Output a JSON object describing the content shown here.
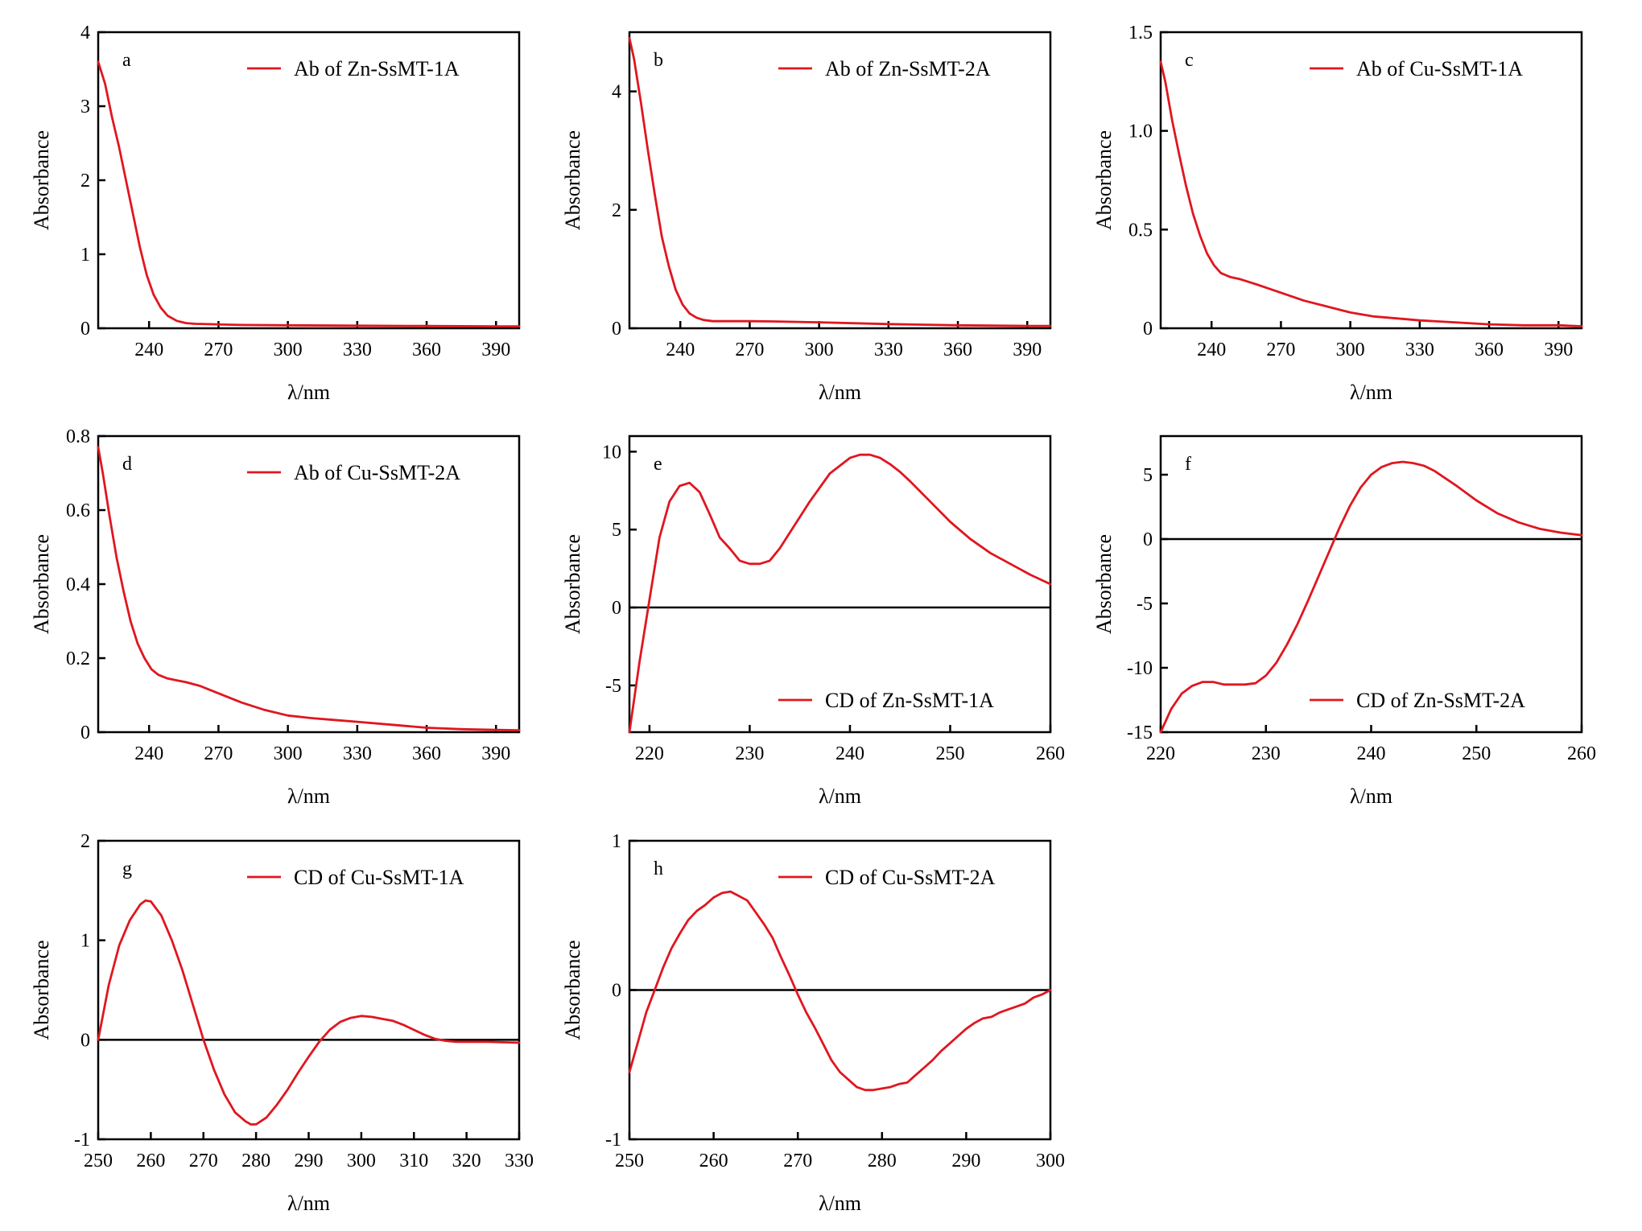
{
  "chart_data": [
    {
      "type": "line",
      "panel_label": "a",
      "xlabel": "λ/nm",
      "ylabel": "Absorbance",
      "xlim": [
        218,
        400
      ],
      "ylim": [
        0,
        4
      ],
      "xticks": [
        240,
        270,
        300,
        330,
        360,
        390
      ],
      "yticks": [
        0,
        1,
        2,
        3,
        4
      ],
      "zero_line": false,
      "legend_position": "top-right",
      "series": [
        {
          "name": "Ab of Zn-SsMT-1A",
          "color": "#e0161f",
          "x": [
            218,
            221,
            224,
            227,
            230,
            233,
            236,
            239,
            242,
            245,
            248,
            252,
            256,
            260,
            266,
            272,
            280,
            300,
            330,
            360,
            390,
            400
          ],
          "y": [
            3.6,
            3.3,
            2.85,
            2.45,
            2.0,
            1.55,
            1.1,
            0.72,
            0.45,
            0.28,
            0.17,
            0.1,
            0.07,
            0.06,
            0.055,
            0.05,
            0.045,
            0.04,
            0.035,
            0.03,
            0.025,
            0.025
          ]
        }
      ]
    },
    {
      "type": "line",
      "panel_label": "b",
      "xlabel": "λ/nm",
      "ylabel": "Absorbance",
      "xlim": [
        218,
        400
      ],
      "ylim": [
        0,
        5
      ],
      "xticks": [
        240,
        270,
        300,
        330,
        360,
        390
      ],
      "yticks": [
        0,
        2,
        4
      ],
      "zero_line": false,
      "legend_position": "top-right",
      "series": [
        {
          "name": "Ab of Zn-SsMT-2A",
          "color": "#e0161f",
          "x": [
            218,
            220,
            223,
            226,
            229,
            232,
            235,
            238,
            241,
            244,
            247,
            250,
            254,
            258,
            264,
            270,
            280,
            300,
            330,
            360,
            390,
            400
          ],
          "y": [
            4.9,
            4.55,
            3.8,
            3.0,
            2.25,
            1.55,
            1.05,
            0.65,
            0.4,
            0.25,
            0.18,
            0.14,
            0.12,
            0.12,
            0.12,
            0.12,
            0.115,
            0.1,
            0.07,
            0.05,
            0.04,
            0.04
          ]
        }
      ]
    },
    {
      "type": "line",
      "panel_label": "c",
      "xlabel": "λ/nm",
      "ylabel": "Absorbance",
      "xlim": [
        218,
        400
      ],
      "ylim": [
        0,
        1.5
      ],
      "xticks": [
        240,
        270,
        300,
        330,
        360,
        390
      ],
      "yticks": [
        0,
        0.5,
        1.0,
        1.5
      ],
      "ytick_labels": [
        "0",
        "0.5",
        "1.0",
        "1.5"
      ],
      "zero_line": false,
      "legend_position": "top-right",
      "series": [
        {
          "name": "Ab of Cu-SsMT-1A",
          "color": "#e0161f",
          "x": [
            218,
            220,
            223,
            226,
            229,
            232,
            235,
            238,
            241,
            244,
            248,
            252,
            256,
            260,
            265,
            270,
            280,
            290,
            300,
            310,
            320,
            330,
            345,
            360,
            375,
            390,
            400
          ],
          "y": [
            1.35,
            1.25,
            1.05,
            0.88,
            0.72,
            0.58,
            0.47,
            0.38,
            0.32,
            0.28,
            0.26,
            0.25,
            0.235,
            0.22,
            0.2,
            0.18,
            0.14,
            0.11,
            0.08,
            0.06,
            0.05,
            0.04,
            0.03,
            0.02,
            0.015,
            0.015,
            0.01
          ]
        }
      ]
    },
    {
      "type": "line",
      "panel_label": "d",
      "xlabel": "λ/nm",
      "ylabel": "Absorbance",
      "xlim": [
        218,
        400
      ],
      "ylim": [
        0,
        0.8
      ],
      "xticks": [
        240,
        270,
        300,
        330,
        360,
        390
      ],
      "yticks": [
        0,
        0.2,
        0.4,
        0.6,
        0.8
      ],
      "ytick_labels": [
        "0",
        "0.2",
        "0.4",
        "0.6",
        "0.8"
      ],
      "zero_line": false,
      "legend_position": "top-right",
      "series": [
        {
          "name": "Ab of Cu-SsMT-2A",
          "color": "#e0161f",
          "x": [
            218,
            220,
            223,
            226,
            229,
            232,
            235,
            238,
            241,
            244,
            248,
            252,
            256,
            262,
            268,
            274,
            280,
            290,
            300,
            310,
            320,
            330,
            345,
            360,
            375,
            390,
            400
          ],
          "y": [
            0.77,
            0.7,
            0.58,
            0.47,
            0.38,
            0.3,
            0.24,
            0.2,
            0.17,
            0.155,
            0.145,
            0.14,
            0.135,
            0.125,
            0.11,
            0.095,
            0.08,
            0.06,
            0.045,
            0.038,
            0.033,
            0.028,
            0.02,
            0.012,
            0.008,
            0.006,
            0.005
          ]
        }
      ]
    },
    {
      "type": "line",
      "panel_label": "e",
      "xlabel": "λ/nm",
      "ylabel": "Absorbance",
      "xlim": [
        218,
        260
      ],
      "ylim": [
        -8,
        11
      ],
      "xticks": [
        220,
        230,
        240,
        250,
        260
      ],
      "yticks": [
        -5,
        0,
        5,
        10
      ],
      "zero_line": true,
      "legend_position": "bottom-right",
      "series": [
        {
          "name": "CD of Zn-SsMT-1A",
          "color": "#e0161f",
          "x": [
            218,
            219,
            220,
            221,
            222,
            223,
            224,
            225,
            226,
            227,
            228,
            229,
            230,
            231,
            232,
            233,
            234,
            236,
            238,
            240,
            241,
            242,
            243,
            244,
            245,
            246,
            248,
            250,
            252,
            254,
            256,
            258,
            260
          ],
          "y": [
            -8,
            -3.5,
            0.5,
            4.5,
            6.8,
            7.8,
            8.0,
            7.4,
            6.0,
            4.5,
            3.8,
            3.0,
            2.8,
            2.8,
            3.0,
            3.8,
            4.8,
            6.8,
            8.6,
            9.6,
            9.8,
            9.8,
            9.6,
            9.2,
            8.7,
            8.1,
            6.8,
            5.5,
            4.4,
            3.5,
            2.8,
            2.1,
            1.5
          ]
        }
      ]
    },
    {
      "type": "line",
      "panel_label": "f",
      "xlabel": "λ/nm",
      "ylabel": "Absorbance",
      "xlim": [
        220,
        260
      ],
      "ylim": [
        -15,
        8
      ],
      "xticks": [
        220,
        230,
        240,
        250,
        260
      ],
      "yticks": [
        -15,
        -10,
        -5,
        0,
        5
      ],
      "zero_line": true,
      "legend_position": "bottom-right",
      "series": [
        {
          "name": "CD of Zn-SsMT-2A",
          "color": "#e0161f",
          "x": [
            220,
            221,
            222,
            223,
            224,
            225,
            226,
            227,
            228,
            229,
            230,
            231,
            232,
            233,
            234,
            235,
            236,
            237,
            238,
            239,
            240,
            241,
            242,
            243,
            244,
            245,
            246,
            248,
            250,
            252,
            254,
            256,
            258,
            260
          ],
          "y": [
            -15,
            -13.2,
            -12.0,
            -11.4,
            -11.1,
            -11.1,
            -11.3,
            -11.3,
            -11.3,
            -11.2,
            -10.6,
            -9.6,
            -8.2,
            -6.6,
            -4.8,
            -2.9,
            -1.0,
            0.9,
            2.6,
            4.0,
            5.0,
            5.6,
            5.9,
            6.0,
            5.9,
            5.7,
            5.3,
            4.2,
            3.0,
            2.0,
            1.3,
            0.8,
            0.5,
            0.3
          ]
        }
      ]
    },
    {
      "type": "line",
      "panel_label": "g",
      "xlabel": "λ/nm",
      "ylabel": "Absorbance",
      "xlim": [
        250,
        330
      ],
      "ylim": [
        -1,
        2
      ],
      "xticks": [
        250,
        260,
        270,
        280,
        290,
        300,
        310,
        320,
        330
      ],
      "yticks": [
        -1,
        0,
        1,
        2
      ],
      "zero_line": true,
      "legend_position": "top-right",
      "series": [
        {
          "name": "CD of Cu-SsMT-1A",
          "color": "#e0161f",
          "x": [
            250,
            252,
            254,
            256,
            258,
            259,
            260,
            262,
            264,
            266,
            268,
            270,
            272,
            274,
            276,
            278,
            279,
            280,
            282,
            284,
            286,
            288,
            290,
            292,
            294,
            296,
            298,
            300,
            302,
            304,
            306,
            308,
            310,
            312,
            314,
            316,
            318,
            320,
            324,
            330
          ],
          "y": [
            0.0,
            0.55,
            0.95,
            1.2,
            1.36,
            1.4,
            1.39,
            1.25,
            1.0,
            0.7,
            0.35,
            0.0,
            -0.3,
            -0.55,
            -0.73,
            -0.82,
            -0.85,
            -0.85,
            -0.78,
            -0.65,
            -0.5,
            -0.33,
            -0.17,
            -0.02,
            0.1,
            0.18,
            0.22,
            0.24,
            0.23,
            0.21,
            0.19,
            0.15,
            0.1,
            0.05,
            0.01,
            -0.01,
            -0.02,
            -0.02,
            -0.02,
            -0.03
          ]
        }
      ]
    },
    {
      "type": "line",
      "panel_label": "h",
      "xlabel": "λ/nm",
      "ylabel": "Absorbance",
      "xlim": [
        250,
        300
      ],
      "ylim": [
        -1,
        1
      ],
      "xticks": [
        250,
        260,
        270,
        280,
        290,
        300
      ],
      "yticks": [
        -1,
        0,
        1
      ],
      "zero_line": true,
      "legend_position": "top-right",
      "series": [
        {
          "name": "CD of Cu-SsMT-2A",
          "color": "#e0161f",
          "x": [
            250,
            251,
            252,
            253,
            254,
            255,
            256,
            257,
            258,
            259,
            260,
            261,
            262,
            263,
            264,
            265,
            266,
            267,
            268,
            269,
            270,
            271,
            272,
            273,
            274,
            275,
            276,
            277,
            278,
            279,
            280,
            281,
            282,
            283,
            284,
            285,
            286,
            287,
            288,
            289,
            290,
            291,
            292,
            293,
            294,
            295,
            296,
            297,
            298,
            299,
            300
          ],
          "y": [
            -0.55,
            -0.35,
            -0.15,
            0.0,
            0.15,
            0.28,
            0.38,
            0.47,
            0.53,
            0.57,
            0.62,
            0.65,
            0.66,
            0.63,
            0.6,
            0.52,
            0.44,
            0.35,
            0.22,
            0.1,
            -0.03,
            -0.15,
            -0.25,
            -0.36,
            -0.47,
            -0.55,
            -0.6,
            -0.65,
            -0.67,
            -0.67,
            -0.66,
            -0.65,
            -0.63,
            -0.62,
            -0.57,
            -0.52,
            -0.47,
            -0.41,
            -0.36,
            -0.31,
            -0.26,
            -0.22,
            -0.19,
            -0.18,
            -0.15,
            -0.13,
            -0.11,
            -0.09,
            -0.05,
            -0.03,
            0.0
          ]
        }
      ]
    }
  ]
}
